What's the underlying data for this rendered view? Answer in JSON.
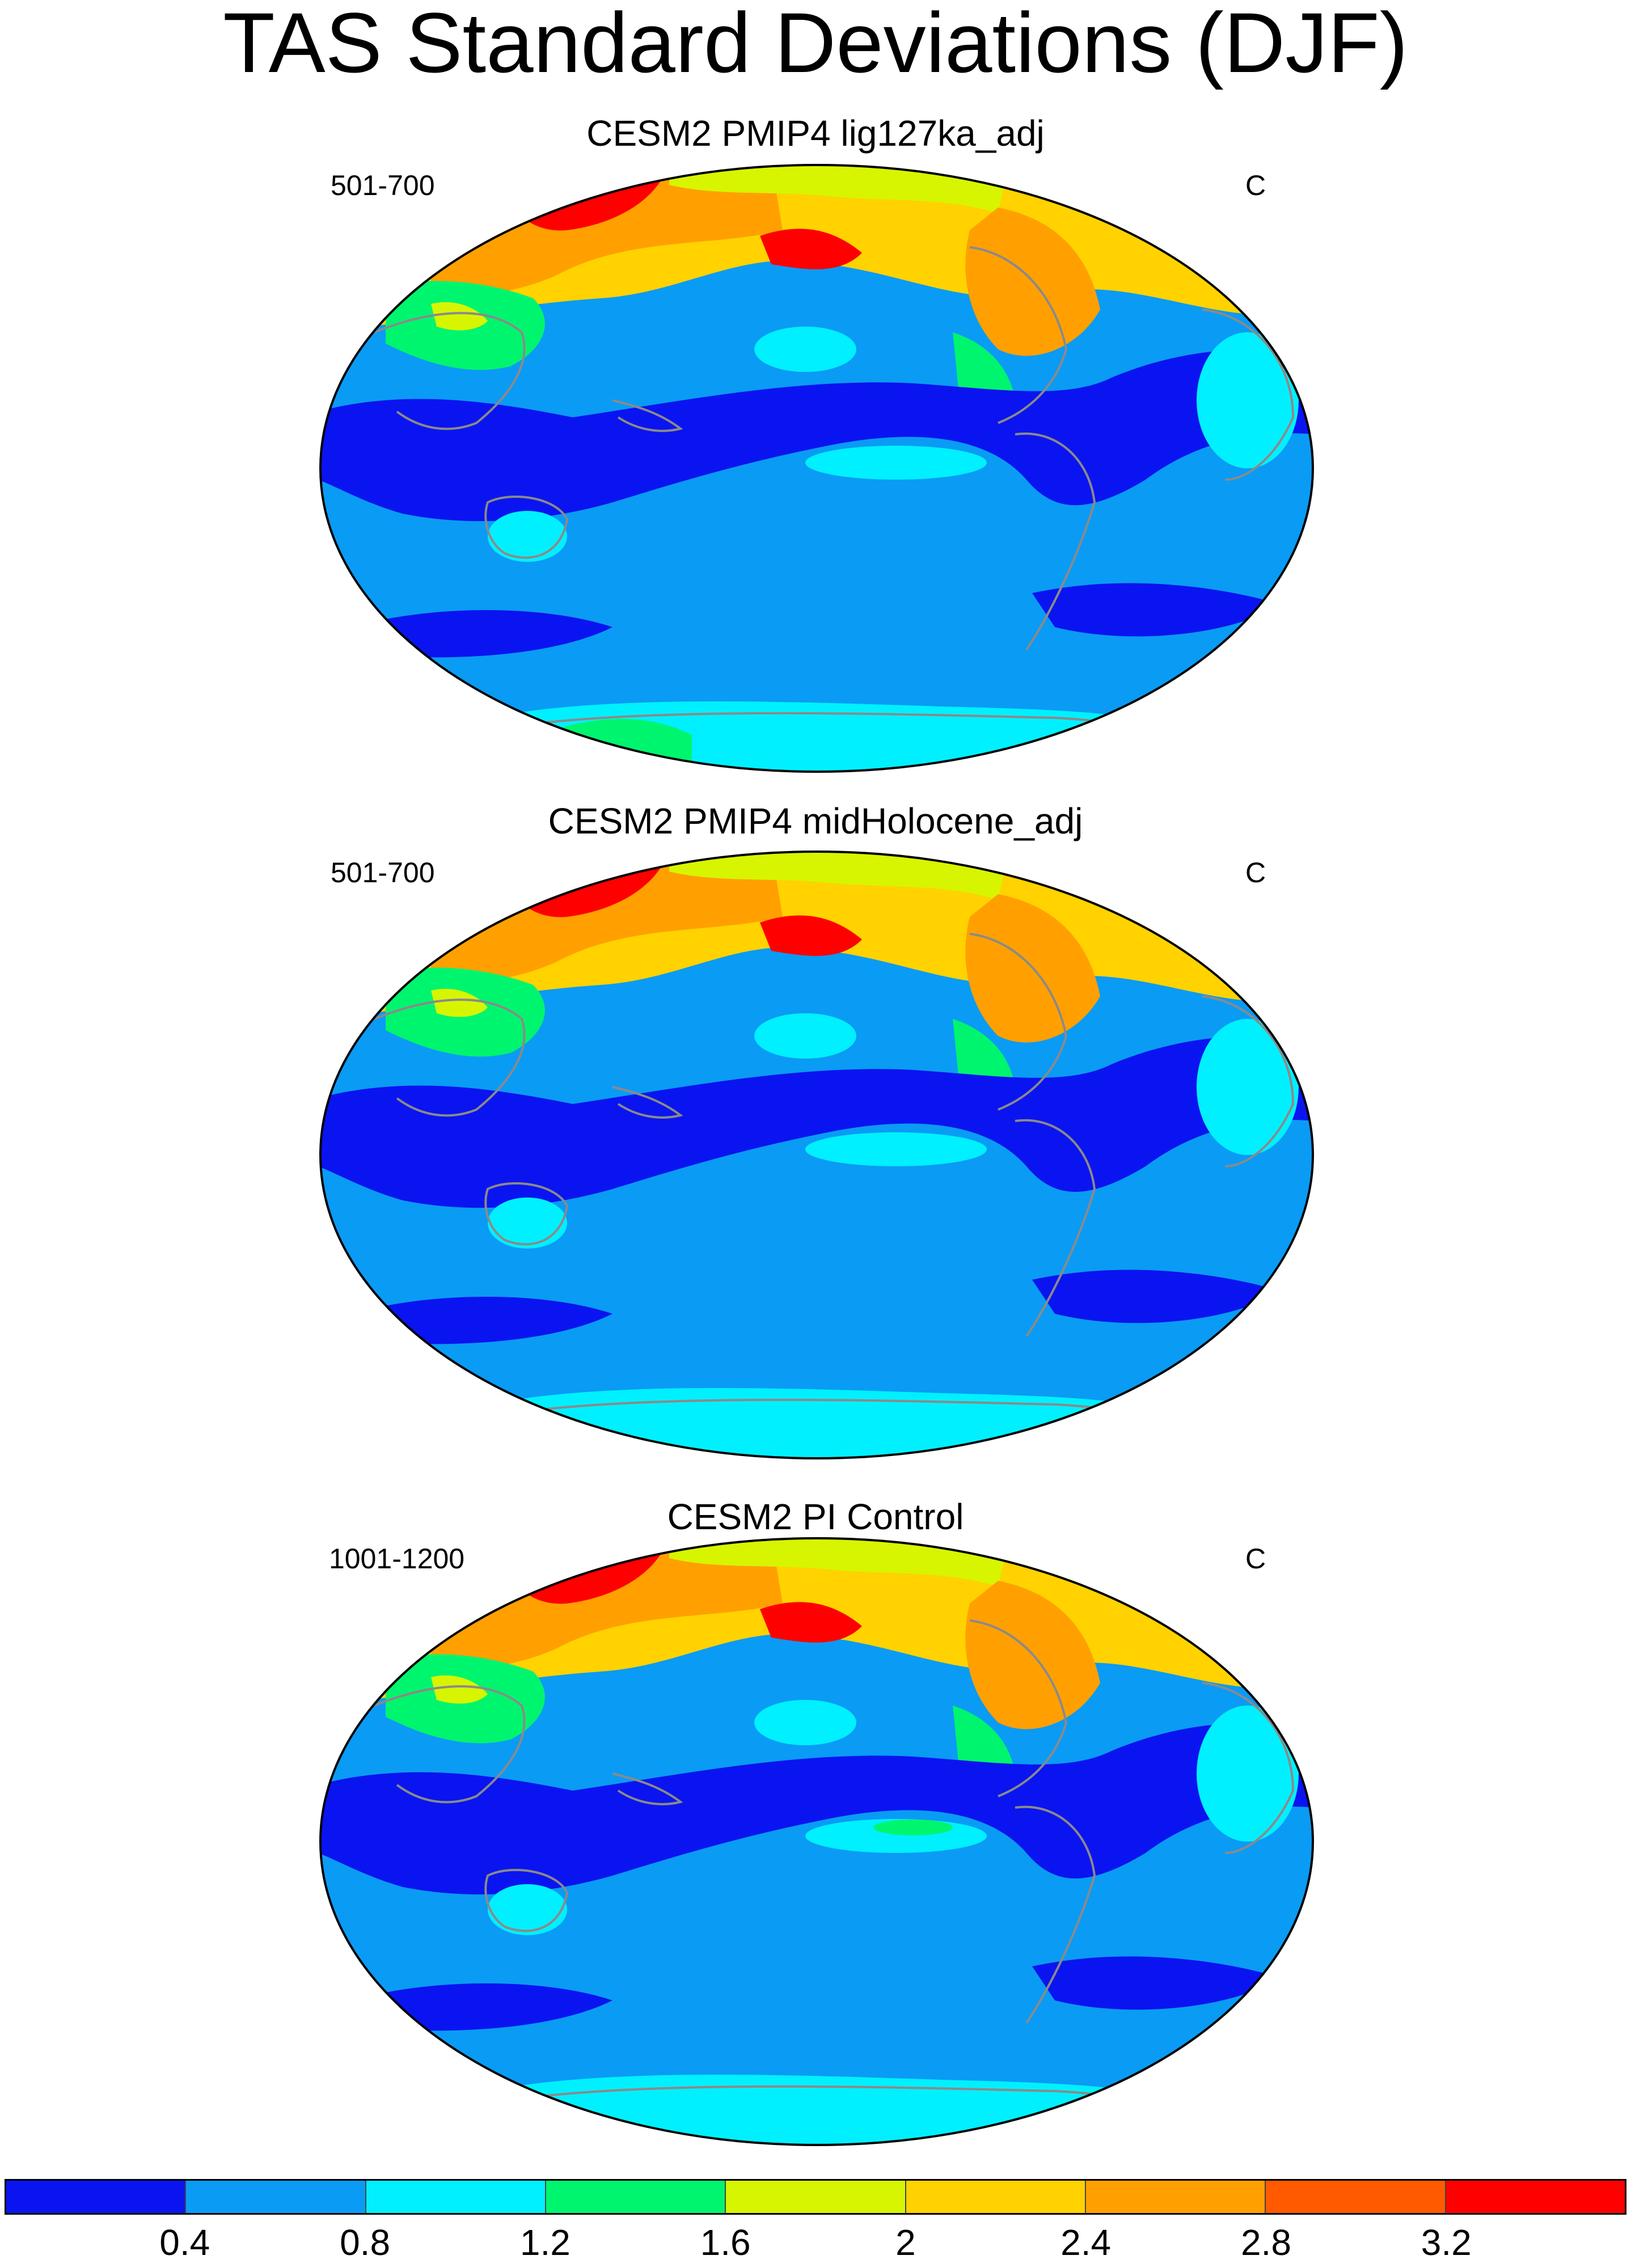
{
  "title": "TAS Standard Deviations (DJF)",
  "panels": [
    {
      "title": "CESM2 PMIP4 lig127ka_adj",
      "left_label": "501-700",
      "right_label": "C"
    },
    {
      "title": "CESM2 PMIP4 midHolocene_adj",
      "left_label": "501-700",
      "right_label": "C"
    },
    {
      "title": "CESM2 PI Control",
      "left_label": "1001-1200",
      "right_label": "C"
    }
  ],
  "colorbar": {
    "colors": [
      "#0a14f0",
      "#0a9bf5",
      "#00f0ff",
      "#00f56e",
      "#d7f500",
      "#ffd200",
      "#ffa000",
      "#ff5a00",
      "#ff0000"
    ],
    "labels": [
      "0.4",
      "0.8",
      "1.2",
      "1.6",
      "2",
      "2.4",
      "2.8",
      "3.2"
    ]
  },
  "map_colors": {
    "ocean_base": "#0a9bf5",
    "low": "#0a14f0",
    "light": "#00f0ff",
    "green": "#00f56e",
    "yellow": "#d7f500",
    "gold": "#ffd200",
    "orange": "#ffa000",
    "darkorange": "#ff5a00",
    "red": "#ff0000",
    "coast": "#8a8a8a"
  }
}
